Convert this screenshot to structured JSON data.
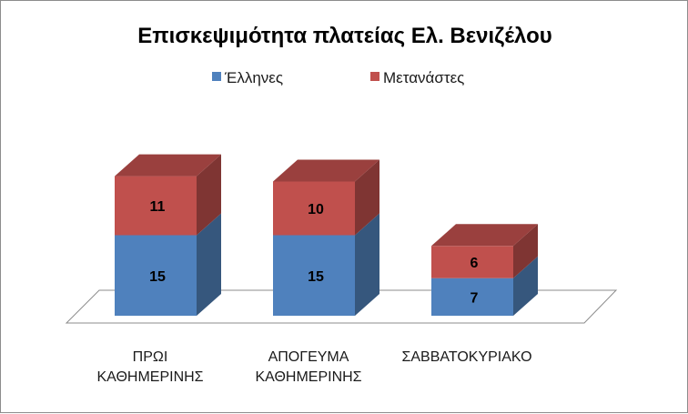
{
  "chart_data": {
    "type": "bar",
    "stacked": true,
    "three_d": true,
    "title": "Επισκεψιμότητα πλατείας Ελ. Βενιζέλου",
    "categories": [
      [
        "ΠΡΩΙ",
        "ΚΑΘΗΜΕΡΙΝΗΣ"
      ],
      [
        "ΑΠΟΓΕΥΜΑ",
        "ΚΑΘΗΜΕΡΙΝΗΣ"
      ],
      [
        "ΣΑΒΒΑΤΟΚΥΡΙΑΚΟ"
      ]
    ],
    "series": [
      {
        "name": "Έλληνες",
        "values": [
          15,
          15,
          7
        ],
        "color": "#4f81bd",
        "side_color": "#36577d",
        "top_color": "#3f6797"
      },
      {
        "name": "Μετανάστες",
        "values": [
          11,
          10,
          6
        ],
        "color": "#c0504d",
        "side_color": "#7f3533",
        "top_color": "#9a403e"
      }
    ],
    "ylim": [
      0,
      30
    ],
    "grid": false,
    "legend_position": "top"
  }
}
